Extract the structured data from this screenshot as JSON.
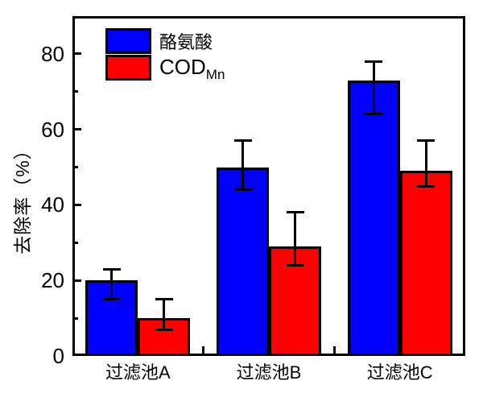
{
  "chart_data": {
    "type": "bar",
    "title": "",
    "xlabel": "",
    "ylabel": "去除率（%）",
    "categories": [
      "过滤池A",
      "过滤池B",
      "过滤池C"
    ],
    "series": [
      {
        "name": "酪氨酸",
        "color": "#0000ff",
        "values": [
          20,
          50,
          73
        ],
        "err_high": [
          23,
          57,
          78
        ],
        "err_low": [
          15,
          44,
          64
        ]
      },
      {
        "name": "COD",
        "name_sub": "Mn",
        "color": "#ff0000",
        "values": [
          10,
          29,
          49
        ],
        "err_high": [
          15,
          38,
          57
        ],
        "err_low": [
          7,
          24,
          45
        ]
      }
    ],
    "ylim": [
      0,
      90
    ],
    "yticks_major": [
      0,
      20,
      40,
      60,
      80
    ],
    "yticks_minor": [
      10,
      30,
      50,
      70
    ],
    "legend_position": "top-left",
    "grid": false,
    "bar_edge_color": "#000000",
    "background_color": "#ffffff"
  }
}
